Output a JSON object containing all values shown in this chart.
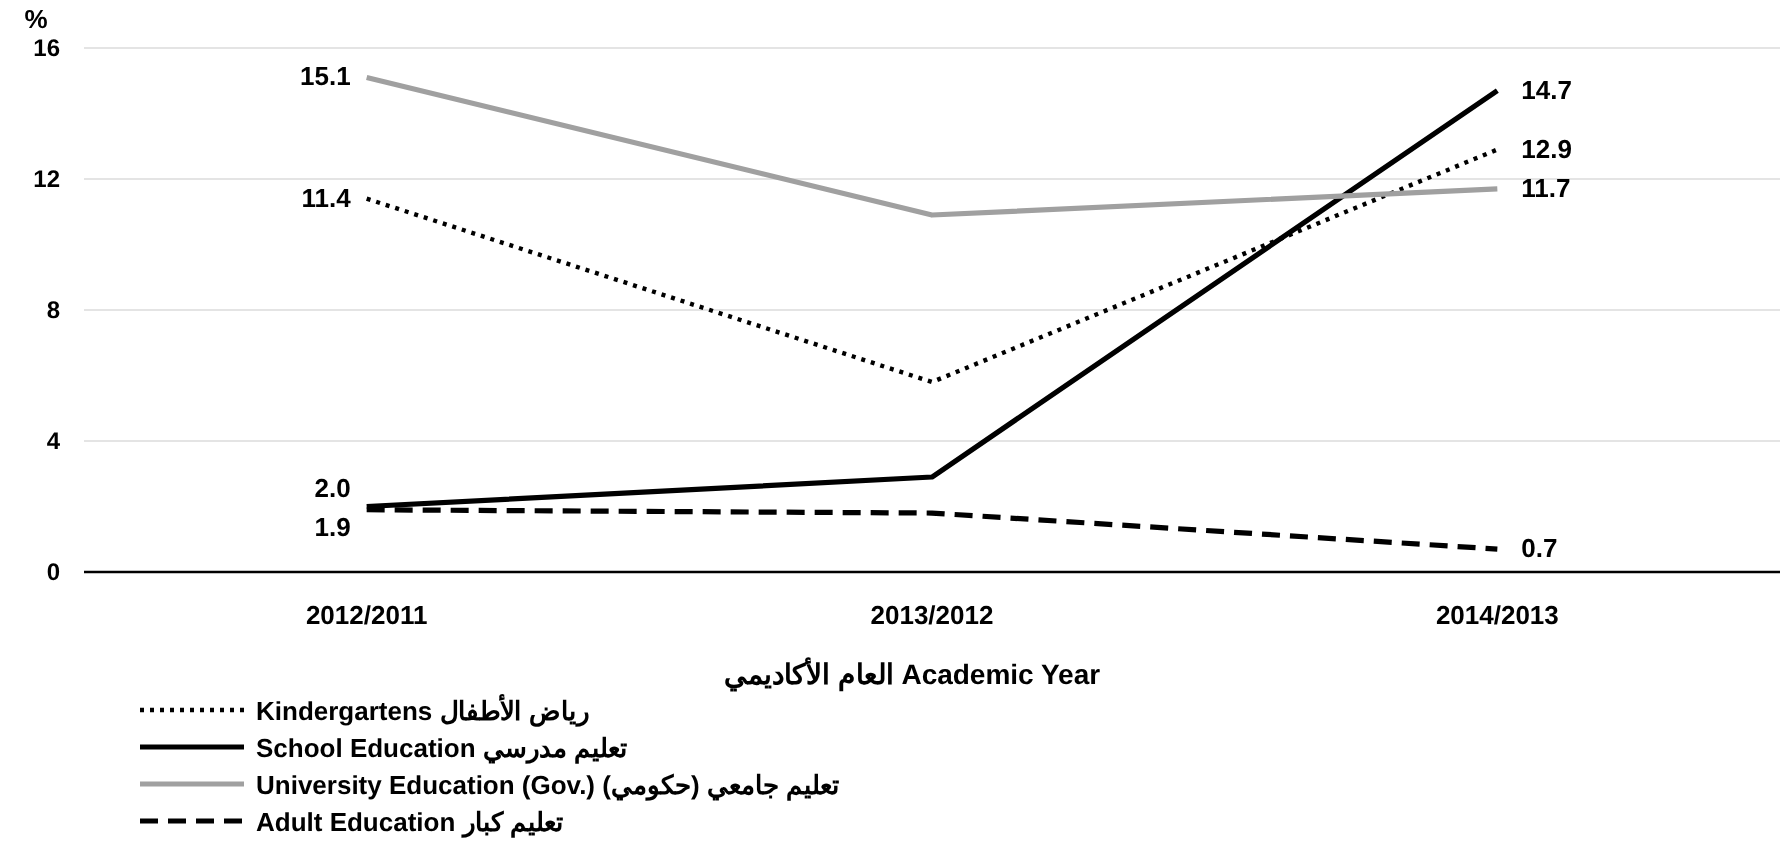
{
  "chart_data": {
    "type": "line",
    "ylabel": "%",
    "xlabel": "العام الأكاديمي Academic Year",
    "categories": [
      "2012/2011",
      "2013/2012",
      "2014/2013"
    ],
    "series": [
      {
        "name": "Kindergartens رياض الأطفال",
        "color": "#000000",
        "line_style": "dotted",
        "values": [
          11.4,
          5.8,
          12.9
        ],
        "value_labels": [
          "11.4",
          null,
          "12.9"
        ]
      },
      {
        "name": "School Education تعليم مدرسي",
        "color": "#000000",
        "line_style": "solid",
        "values": [
          2.0,
          2.9,
          14.7
        ],
        "value_labels": [
          "2.0",
          null,
          "14.7"
        ]
      },
      {
        "name": "University Education (Gov.) تعليم جامعي (حكومي)",
        "color": "#a0a0a0",
        "line_style": "solid",
        "values": [
          15.1,
          10.9,
          11.7
        ],
        "value_labels": [
          "15.1",
          null,
          "11.7"
        ]
      },
      {
        "name": "Adult Education تعليم كبار",
        "color": "#000000",
        "line_style": "dashed",
        "values": [
          1.9,
          1.8,
          0.7
        ],
        "value_labels": [
          "1.9",
          null,
          "0.7"
        ]
      }
    ],
    "ylim": [
      0,
      16
    ],
    "yticks": [
      0,
      4,
      8,
      12,
      16
    ],
    "grid": "y",
    "legend": "bottom"
  }
}
